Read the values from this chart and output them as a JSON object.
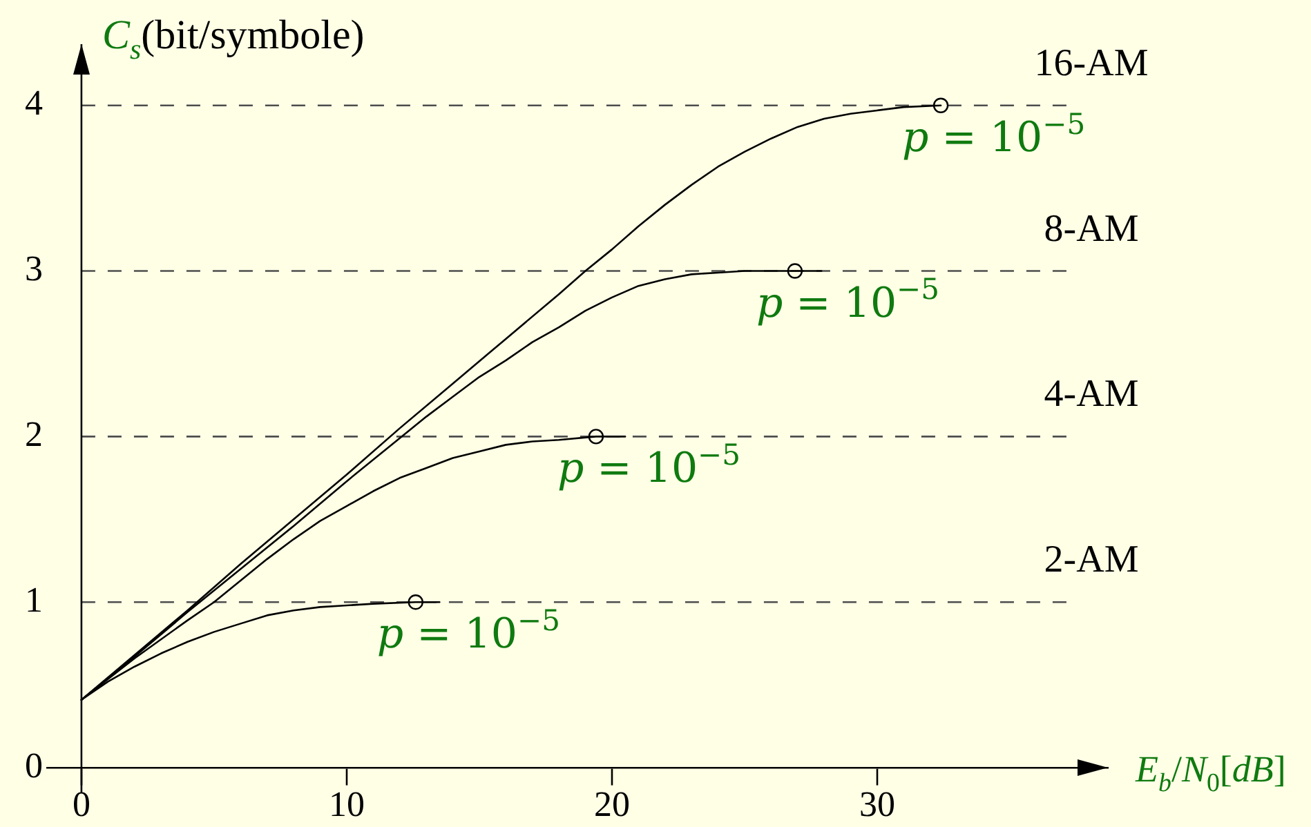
{
  "chart_data": {
    "type": "line",
    "xlabel": "E$_{b}$/N$_{0}$[dB]",
    "ylabel": "C$_{s}$(bit/symbole)",
    "xlim": [
      -1.3,
      38.7
    ],
    "ylim": [
      -0.15,
      4.37
    ],
    "xticks": [
      0,
      10,
      20,
      30
    ],
    "yticks": [
      0,
      1,
      2,
      3,
      4
    ],
    "grid": false,
    "legend": false,
    "marker": "none",
    "line_style": "solid",
    "series": [
      {
        "color": "#000000",
        "x": [
          0,
          1,
          2,
          3,
          4,
          5,
          6,
          7,
          8,
          9,
          10,
          11,
          12.6,
          13.5
        ],
        "values": [
          0.41,
          0.52,
          0.61,
          0.69,
          0.76,
          0.82,
          0.87,
          0.92,
          0.95,
          0.97,
          0.98,
          0.99,
          1,
          1
        ]
      },
      {
        "color": "#000000",
        "x": [
          0,
          2,
          4,
          5,
          6,
          7,
          8,
          9,
          10,
          11,
          12,
          13,
          14,
          15,
          16,
          17,
          18,
          19.4,
          20.5
        ],
        "values": [
          0.41,
          0.66,
          0.89,
          1.0,
          1.13,
          1.26,
          1.38,
          1.49,
          1.58,
          1.67,
          1.75,
          1.81,
          1.87,
          1.91,
          1.95,
          1.97,
          1.98,
          2,
          2
        ]
      },
      {
        "color": "#000000",
        "x": [
          0,
          2,
          4,
          6,
          8,
          10,
          12,
          13,
          14,
          15,
          16,
          17,
          18,
          19,
          20,
          21,
          22,
          23,
          24,
          25,
          26.9,
          27.9
        ],
        "values": [
          0.41,
          0.67,
          0.94,
          1.2,
          1.46,
          1.73,
          1.99,
          2.12,
          2.24,
          2.36,
          2.46,
          2.57,
          2.66,
          2.76,
          2.84,
          2.91,
          2.95,
          2.98,
          2.99,
          3,
          3,
          3
        ]
      },
      {
        "color": "#000000",
        "x": [
          0,
          2,
          4,
          6,
          8,
          10,
          12,
          14,
          16,
          18,
          19,
          20,
          21,
          22,
          23,
          24,
          25,
          26,
          27,
          28,
          29,
          30,
          31,
          32.4
        ],
        "values": [
          0.41,
          0.68,
          0.95,
          1.23,
          1.5,
          1.77,
          2.05,
          2.32,
          2.59,
          2.86,
          3.0,
          3.13,
          3.27,
          3.4,
          3.52,
          3.63,
          3.72,
          3.8,
          3.87,
          3.92,
          3.95,
          3.97,
          3.99,
          4
        ]
      },
      {
        "type": "scatter",
        "marker": "circle",
        "color": "#000000",
        "x": [
          12.6,
          19.4,
          26.9,
          32.4
        ],
        "values": [
          1,
          2,
          3,
          4
        ]
      }
    ],
    "ref_lines": [
      {
        "axis": "y",
        "value": 1,
        "label": "2-AM",
        "color": "#4d4d4d",
        "line_style": "dashed"
      },
      {
        "axis": "y",
        "value": 2,
        "label": "4-AM",
        "color": "#4d4d4d",
        "line_style": "dashed"
      },
      {
        "axis": "y",
        "value": 3,
        "label": "8-AM",
        "color": "#4d4d4d",
        "line_style": "dashed"
      },
      {
        "axis": "y",
        "value": 4,
        "label": "16-AM",
        "color": "#4d4d4d",
        "line_style": "dashed"
      }
    ],
    "annotations": [
      {
        "text": "p = 10$^{−5}$",
        "x": 12.6,
        "y": 1
      },
      {
        "text": "p = 10$^{−5}$",
        "x": 19.4,
        "y": 2
      },
      {
        "text": "p = 10$^{−5}$",
        "x": 26.9,
        "y": 3
      },
      {
        "text": "p = 10$^{−5}$",
        "x": 32.4,
        "y": 4
      }
    ]
  }
}
